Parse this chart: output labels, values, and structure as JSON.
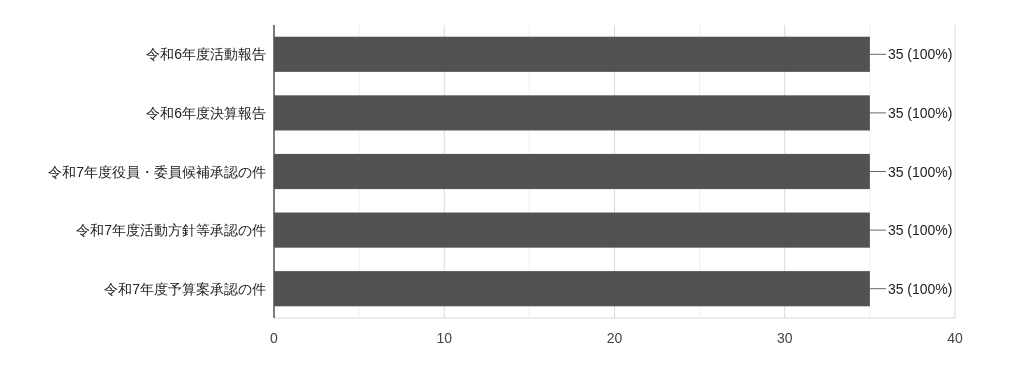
{
  "chart_data": {
    "type": "bar",
    "orientation": "horizontal",
    "categories": [
      "令和6年度活動報告",
      "令和6年度決算報告",
      "令和7年度役員・委員候補承認の件",
      "令和7年度活動方針等承認の件",
      "令和7年度予算案承認の件"
    ],
    "values": [
      35,
      35,
      35,
      35,
      35
    ],
    "value_labels": [
      "35 (100%)",
      "35 (100%)",
      "35 (100%)",
      "35 (100%)",
      "35 (100%)"
    ],
    "color": "#545251",
    "xlim": [
      0,
      40
    ],
    "xticks": [
      0,
      {
        "value": 5,
        "label": null
      },
      10,
      {
        "value": 15,
        "label": null
      },
      20,
      {
        "value": 25,
        "label": null
      },
      30,
      {
        "value": 35,
        "label": null
      },
      40
    ],
    "grid": true
  }
}
